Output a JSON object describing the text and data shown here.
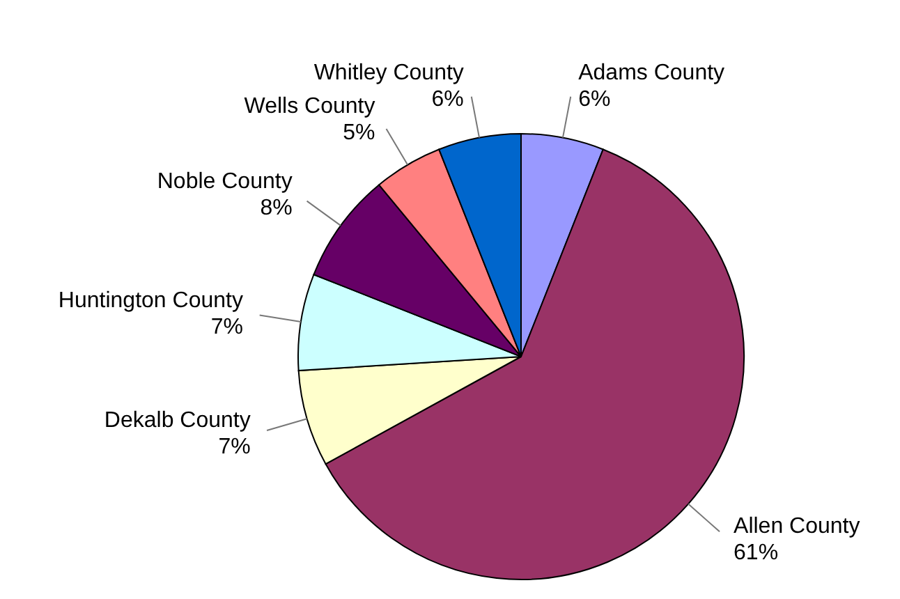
{
  "chart_data": {
    "type": "pie",
    "categories": [
      "Adams County",
      "Allen County",
      "Dekalb County",
      "Huntington County",
      "Noble County",
      "Wells County",
      "Whitley County"
    ],
    "values": [
      6,
      61,
      7,
      7,
      8,
      5,
      6
    ],
    "value_labels": [
      "6%",
      "61%",
      "7%",
      "7%",
      "8%",
      "5%",
      "6%"
    ],
    "colors": [
      "#9999ff",
      "#993366",
      "#ffffcc",
      "#ccffff",
      "#660066",
      "#ff8080",
      "#0066cc"
    ]
  }
}
